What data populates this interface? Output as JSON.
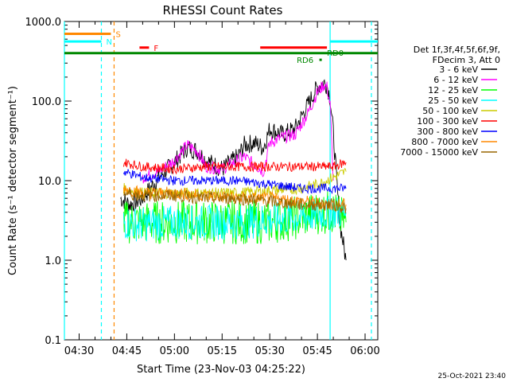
{
  "chart_data": {
    "type": "line",
    "title": "RHESSI Count Rates",
    "xlabel": "Start Time (23-Nov-03 04:25:22)",
    "ylabel": "Count Rate (s⁻¹ detector segment⁻¹)",
    "y_scale": "log",
    "ylim": [
      0.1,
      1000
    ],
    "xlim": [
      "04:25:22",
      "06:04:00"
    ],
    "x_ticks": [
      "04:30",
      "04:45",
      "05:00",
      "05:15",
      "05:30",
      "05:45",
      "06:00"
    ],
    "y_ticks": [
      "0.1",
      "1.0",
      "10.0",
      "100.0",
      "1000.0"
    ],
    "legend": {
      "placement": "right",
      "header": [
        "Det 1f,3f,4f,5f,6f,9f,",
        "FDecim 3, Att 0"
      ],
      "entries": [
        {
          "label": "3 - 6 keV",
          "color": "#000000"
        },
        {
          "label": "6 - 12 keV",
          "color": "#ff00ff"
        },
        {
          "label": "12 - 25 keV",
          "color": "#00ff00"
        },
        {
          "label": "25 - 50 keV",
          "color": "#00ffff"
        },
        {
          "label": "50 - 100 keV",
          "color": "#cccc00"
        },
        {
          "label": "100 - 300 keV",
          "color": "#ff0000"
        },
        {
          "label": "300 - 800 keV",
          "color": "#0000ff"
        },
        {
          "label": "800 - 7000 keV",
          "color": "#ff8800"
        },
        {
          "label": "7000 - 15000 keV",
          "color": "#996600"
        }
      ]
    },
    "series": [
      {
        "name": "3 - 6 keV",
        "color": "#000000",
        "x": [
          "04:43",
          "04:46",
          "04:50",
          "04:55",
          "05:00",
          "05:04",
          "05:07",
          "05:10",
          "05:15",
          "05:20",
          "05:22",
          "05:25",
          "05:28",
          "05:30",
          "05:34",
          "05:38",
          "05:42",
          "05:45",
          "05:47",
          "05:48",
          "05:49",
          "05:50",
          "05:52",
          "05:54"
        ],
        "y": [
          6,
          5,
          6,
          11,
          17,
          26,
          24,
          18,
          14,
          20,
          28,
          30,
          26,
          45,
          38,
          45,
          90,
          150,
          170,
          160,
          110,
          40,
          3,
          1
        ]
      },
      {
        "name": "6 - 12 keV",
        "color": "#ff00ff",
        "x": [
          "04:50",
          "04:55",
          "05:00",
          "05:04",
          "05:07",
          "05:10",
          "05:15",
          "05:20",
          "05:22",
          "05:25",
          "05:28",
          "05:30",
          "05:34",
          "05:38",
          "05:42",
          "05:45",
          "05:47",
          "05:48",
          "05:49",
          "05:50"
        ],
        "y": [
          11,
          13,
          18,
          28,
          24,
          15,
          14,
          18,
          20,
          16,
          13,
          30,
          35,
          38,
          70,
          130,
          160,
          150,
          90,
          10
        ]
      },
      {
        "name": "12 - 25 keV",
        "color": "#00ff00",
        "x": [
          "04:44",
          "04:50",
          "05:00",
          "05:10",
          "05:20",
          "05:30",
          "05:40",
          "05:45",
          "05:50",
          "05:54"
        ],
        "y": [
          3,
          3,
          3,
          3,
          3,
          3,
          3.5,
          4,
          4,
          3
        ]
      },
      {
        "name": "25 - 50 keV",
        "color": "#00ffff",
        "x": [
          "04:44",
          "04:50",
          "05:00",
          "05:10",
          "05:20",
          "05:30",
          "05:40",
          "05:50",
          "05:54"
        ],
        "y": [
          3,
          2.8,
          3,
          3,
          3,
          3.2,
          3.5,
          4,
          4
        ]
      },
      {
        "name": "50 - 100 keV",
        "color": "#cccc00",
        "x": [
          "04:44",
          "04:50",
          "05:00",
          "05:10",
          "05:20",
          "05:30",
          "05:40",
          "05:45",
          "05:50",
          "05:54"
        ],
        "y": [
          8,
          7,
          7,
          7,
          7,
          7.5,
          8,
          9,
          11,
          13
        ]
      },
      {
        "name": "100 - 300 keV",
        "color": "#ff0000",
        "x": [
          "04:44",
          "04:50",
          "05:00",
          "05:10",
          "05:20",
          "05:30",
          "05:40",
          "05:50",
          "05:54"
        ],
        "y": [
          17,
          15,
          14,
          15,
          15,
          15,
          15,
          15,
          17
        ]
      },
      {
        "name": "300 - 800 keV",
        "color": "#0000ff",
        "x": [
          "04:44",
          "04:50",
          "05:00",
          "05:10",
          "05:20",
          "05:30",
          "05:40",
          "05:50",
          "05:54"
        ],
        "y": [
          13,
          11,
          10,
          10,
          10,
          9,
          8,
          8,
          8
        ]
      },
      {
        "name": "800 - 7000 keV",
        "color": "#ff8800",
        "x": [
          "04:44",
          "04:50",
          "05:00",
          "05:10",
          "05:20",
          "05:30",
          "05:40",
          "05:50",
          "05:54"
        ],
        "y": [
          8,
          7,
          7,
          6.5,
          6,
          6,
          5.5,
          5,
          5
        ]
      },
      {
        "name": "7000 - 15000 keV",
        "color": "#996600",
        "x": [
          "04:44",
          "04:50",
          "05:00",
          "05:10",
          "05:20",
          "05:30",
          "05:40",
          "05:50",
          "05:54"
        ],
        "y": [
          7,
          6.5,
          6.5,
          6,
          6,
          5.5,
          5,
          5,
          4.5
        ]
      }
    ],
    "annotations": [
      {
        "label": "S",
        "color": "#ff8800",
        "x_start": "04:25:22",
        "x_end": "04:40:00",
        "y": 700
      },
      {
        "label": "N",
        "color": "#00ffff",
        "x_start": "04:25:22",
        "x_end": "04:37:00",
        "y": 560
      },
      {
        "label": "F",
        "color": "#ff0000",
        "x_start": "04:49:00",
        "x_end": "04:52:00",
        "y": 470
      },
      {
        "label": "",
        "color": "#ff0000",
        "x_start": "05:27:00",
        "x_end": "05:48:00",
        "y": 470
      },
      {
        "label": "",
        "color": "#00ffff",
        "x_start": "05:49:00",
        "x_end": "06:04:00",
        "y": 560
      },
      {
        "label": "",
        "color": "#008800",
        "x_start": "04:25:22",
        "x_end": "06:04:00",
        "y": 400
      },
      {
        "label": "RD6",
        "color": "#008800",
        "x": "05:46:00",
        "y": 330
      },
      {
        "label": "RD0",
        "color": "#008800",
        "x": "05:50:00",
        "y": 400
      }
    ],
    "vlines": [
      {
        "x": "04:25:22",
        "color": "#00ffff",
        "style": "solid"
      },
      {
        "x": "04:37:00",
        "color": "#00ffff",
        "style": "dashed"
      },
      {
        "x": "04:41:00",
        "color": "#ff8800",
        "style": "dashed"
      },
      {
        "x": "05:49:00",
        "color": "#00ffff",
        "style": "solid"
      },
      {
        "x": "06:02:00",
        "color": "#00ffff",
        "style": "dashed"
      }
    ]
  },
  "footer_timestamp": "25-Oct-2021 23:40"
}
